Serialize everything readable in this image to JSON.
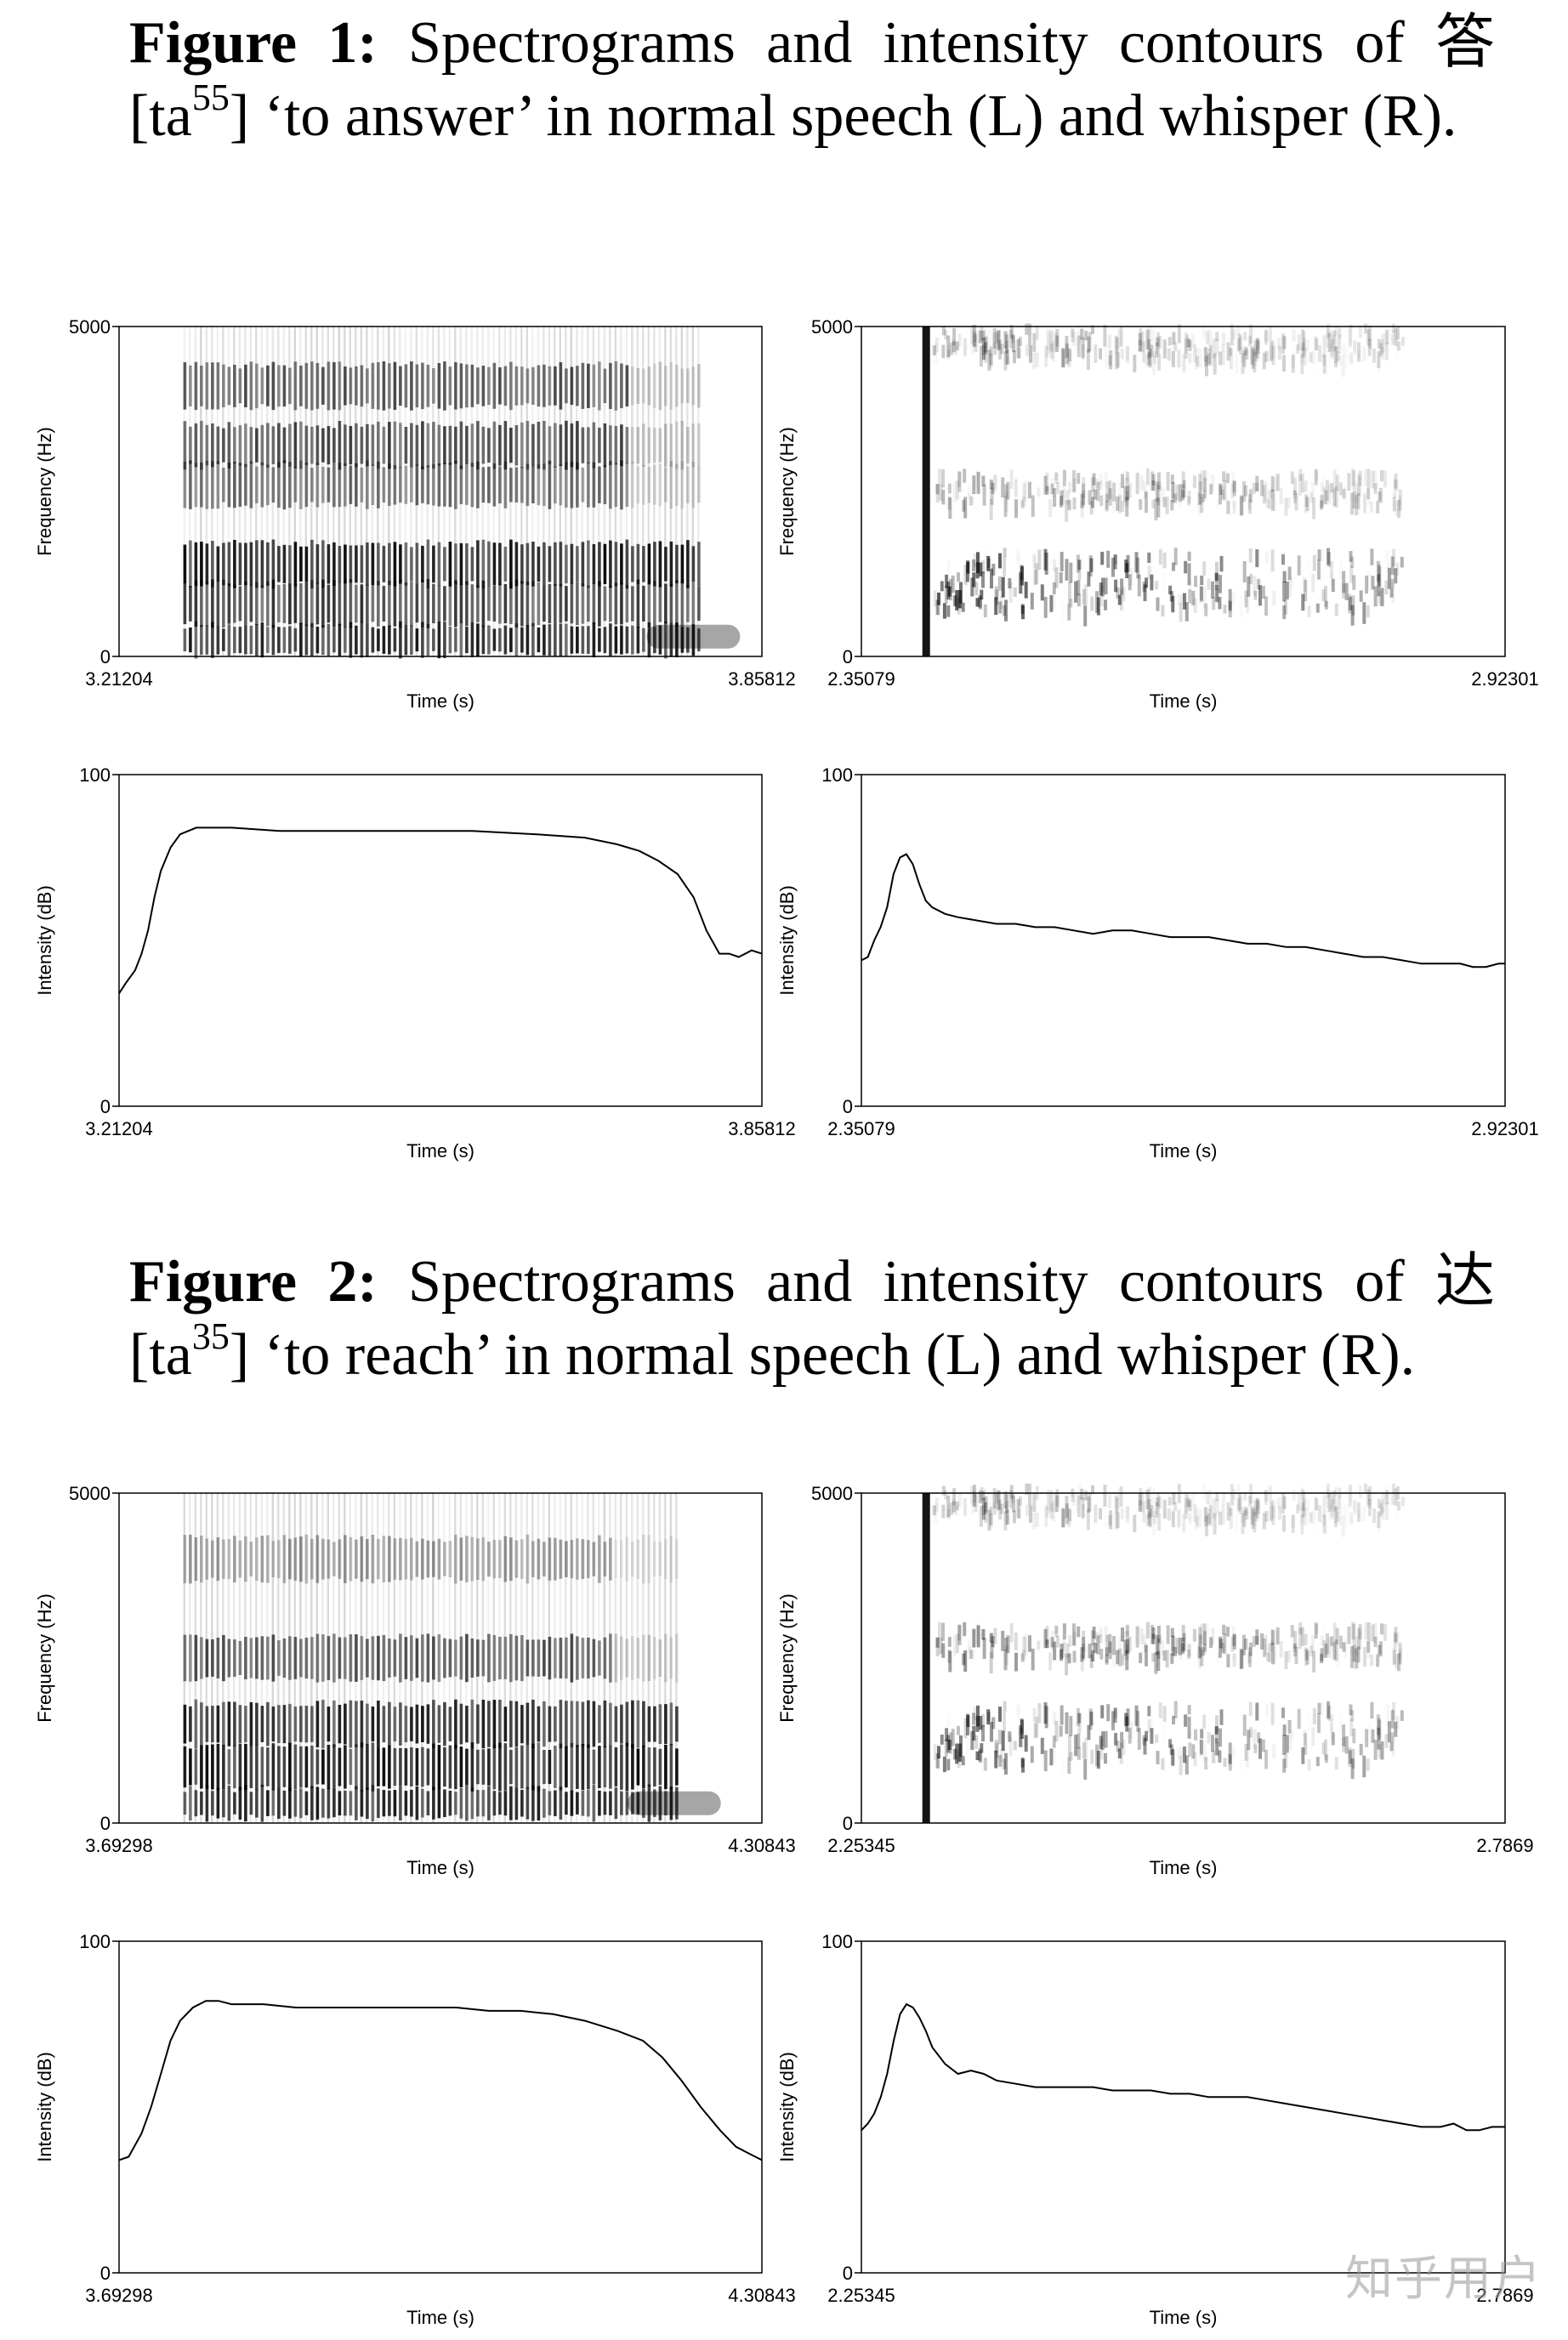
{
  "figure1": {
    "label": "Figure 1:",
    "text_a": " Spectrograms and intensity contours of 答 [ta",
    "sup": "55",
    "text_b": "] ‘to answer’ in normal speech (L) and whisper (R)."
  },
  "figure2": {
    "label": "Figure 2:",
    "text_a": " Spectrograms and intensity contours of 达 [ta",
    "sup": "35",
    "text_b": "] ‘to reach’ in normal speech (L) and whisper (R)."
  },
  "watermark": "知乎用户",
  "chart_data": [
    {
      "id": "fig1-left-spectrogram",
      "type": "heatmap",
      "xlabel": "Time (s)",
      "ylabel": "Frequency (Hz)",
      "xlim": [
        3.21204,
        3.85812
      ],
      "ylim": [
        0,
        5000
      ],
      "x_tick_labels": [
        "3.21204",
        "3.85812"
      ],
      "y_tick_labels": [
        "0",
        "5000"
      ],
      "mode": "voiced",
      "onset": 0.1,
      "offset": 0.9,
      "bands": [
        [
          250,
          0.9
        ],
        [
          800,
          0.8
        ],
        [
          1400,
          0.95
        ],
        [
          2600,
          0.6
        ],
        [
          3200,
          0.75
        ],
        [
          4100,
          0.7
        ]
      ]
    },
    {
      "id": "fig1-right-spectrogram",
      "type": "heatmap",
      "xlabel": "Time (s)",
      "ylabel": "Frequency (Hz)",
      "xlim": [
        2.35079,
        2.92301
      ],
      "ylim": [
        0,
        5000
      ],
      "x_tick_labels": [
        "2.35079",
        "2.92301"
      ],
      "y_tick_labels": [
        "0",
        "5000"
      ],
      "mode": "whisper",
      "onset": 0.1,
      "offset": 0.84,
      "bands": [
        [
          1200,
          0.85
        ],
        [
          2600,
          0.4
        ],
        [
          4800,
          0.35
        ]
      ]
    },
    {
      "id": "fig1-left-intensity",
      "type": "line",
      "xlabel": "Time (s)",
      "ylabel": "Intensity (dB)",
      "xlim": [
        3.21204,
        3.85812
      ],
      "ylim": [
        0,
        100
      ],
      "x_tick_labels": [
        "3.21204",
        "3.85812"
      ],
      "y_tick_labels": [
        "0",
        "100"
      ],
      "x": [
        3.21204,
        3.2185,
        3.2282,
        3.2347,
        3.2412,
        3.2476,
        3.2541,
        3.2638,
        3.2734,
        3.2896,
        3.3251,
        3.3735,
        3.438,
        3.5026,
        3.5672,
        3.6316,
        3.68,
        3.7122,
        3.7348,
        3.7541,
        3.7734,
        3.7895,
        3.8024,
        3.8154,
        3.8252,
        3.8349,
        3.8478,
        3.85812
      ],
      "y": [
        34,
        37,
        41,
        46,
        53,
        63,
        71,
        78,
        82,
        84,
        84,
        83,
        83,
        83,
        83,
        82,
        81,
        79,
        77,
        74,
        70,
        63,
        53,
        46,
        46,
        45,
        47,
        46
      ]
    },
    {
      "id": "fig1-right-intensity",
      "type": "line",
      "xlabel": "Time (s)",
      "ylabel": "Intensity (dB)",
      "xlim": [
        2.35079,
        2.92301
      ],
      "ylim": [
        0,
        100
      ],
      "x_tick_labels": [
        "2.35079",
        "2.92301"
      ],
      "y_tick_labels": [
        "0",
        "100"
      ],
      "x": [
        2.35079,
        2.3565,
        2.3622,
        2.3679,
        2.3737,
        2.3794,
        2.3851,
        2.3908,
        2.3965,
        2.4023,
        2.408,
        2.4137,
        2.4252,
        2.4366,
        2.4538,
        2.471,
        2.4881,
        2.5053,
        2.5225,
        2.5396,
        2.5568,
        2.574,
        2.5911,
        2.6083,
        2.6255,
        2.6426,
        2.6598,
        2.677,
        2.6941,
        2.7113,
        2.7285,
        2.7456,
        2.7628,
        2.78,
        2.7971,
        2.8143,
        2.8315,
        2.8486,
        2.8658,
        2.883,
        2.8944,
        2.9059,
        2.9173,
        2.92301
      ],
      "y": [
        44,
        45,
        50,
        54,
        60,
        70,
        75,
        76,
        73,
        67,
        62,
        60,
        58,
        57,
        56,
        55,
        55,
        54,
        54,
        53,
        52,
        53,
        53,
        52,
        51,
        51,
        51,
        50,
        49,
        49,
        48,
        48,
        47,
        46,
        45,
        45,
        44,
        43,
        43,
        43,
        42,
        42,
        43,
        43
      ]
    },
    {
      "id": "fig2-left-spectrogram",
      "type": "heatmap",
      "xlabel": "Time (s)",
      "ylabel": "Frequency (Hz)",
      "xlim": [
        3.69298,
        4.30843
      ],
      "ylim": [
        0,
        5000
      ],
      "x_tick_labels": [
        "3.69298",
        "4.30843"
      ],
      "y_tick_labels": [
        "0",
        "5000"
      ],
      "mode": "voiced",
      "onset": 0.1,
      "offset": 0.87,
      "bands": [
        [
          300,
          0.9
        ],
        [
          850,
          0.95
        ],
        [
          1500,
          0.9
        ],
        [
          2500,
          0.7
        ],
        [
          4000,
          0.4
        ]
      ]
    },
    {
      "id": "fig2-right-spectrogram",
      "type": "heatmap",
      "xlabel": "Time (s)",
      "ylabel": "Frequency (Hz)",
      "xlim": [
        2.25345,
        2.7869
      ],
      "ylim": [
        0,
        5000
      ],
      "x_tick_labels": [
        "2.25345",
        "2.7869"
      ],
      "y_tick_labels": [
        "0",
        "5000"
      ],
      "mode": "whisper",
      "onset": 0.1,
      "offset": 0.84,
      "bands": [
        [
          1400,
          0.75
        ],
        [
          2800,
          0.55
        ],
        [
          4900,
          0.3
        ]
      ]
    },
    {
      "id": "fig2-left-intensity",
      "type": "line",
      "xlabel": "Time (s)",
      "ylabel": "Intensity (dB)",
      "xlim": [
        3.69298,
        4.30843
      ],
      "ylim": [
        0,
        100
      ],
      "x": [
        3.69298,
        3.7022,
        3.7145,
        3.7237,
        3.733,
        3.7422,
        3.7514,
        3.7637,
        3.776,
        3.7883,
        3.8006,
        3.8314,
        3.8622,
        3.8929,
        3.9237,
        3.9545,
        3.9853,
        4.016,
        4.0468,
        4.0776,
        4.1084,
        4.1391,
        4.1699,
        4.1945,
        4.213,
        4.2314,
        4.2499,
        4.2684,
        4.2837,
        4.296,
        4.30843
      ],
      "y": [
        34,
        35,
        42,
        50,
        60,
        70,
        76,
        80,
        82,
        82,
        81,
        81,
        80,
        80,
        80,
        80,
        80,
        80,
        79,
        79,
        78,
        76,
        73,
        70,
        65,
        58,
        50,
        43,
        38,
        36,
        34
      ],
      "x_tick_labels": [
        "3.69298",
        "4.30843"
      ],
      "y_tick_labels": [
        "0",
        "100"
      ]
    },
    {
      "id": "fig2-right-intensity",
      "type": "line",
      "xlabel": "Time (s)",
      "ylabel": "Intensity (dB)",
      "xlim": [
        2.25345,
        2.7869
      ],
      "ylim": [
        0,
        100
      ],
      "x_tick_labels": [
        "2.25345",
        "2.7869"
      ],
      "y_tick_labels": [
        "0",
        "100"
      ],
      "x": [
        2.25345,
        2.2588,
        2.2641,
        2.2695,
        2.2748,
        2.2802,
        2.2855,
        2.2908,
        2.2962,
        2.3015,
        2.3068,
        2.3122,
        2.3228,
        2.3335,
        2.3442,
        2.3548,
        2.3655,
        2.3815,
        2.3975,
        2.4135,
        2.4295,
        2.4455,
        2.4615,
        2.4775,
        2.4935,
        2.5095,
        2.5255,
        2.5415,
        2.5575,
        2.5735,
        2.5895,
        2.6055,
        2.6215,
        2.6375,
        2.6535,
        2.6695,
        2.6855,
        2.7015,
        2.7175,
        2.7335,
        2.7442,
        2.7549,
        2.7655,
        2.7762,
        2.7869
      ],
      "y": [
        43,
        45,
        48,
        53,
        60,
        70,
        78,
        81,
        80,
        77,
        73,
        68,
        63,
        60,
        61,
        60,
        58,
        57,
        56,
        56,
        56,
        56,
        55,
        55,
        55,
        54,
        54,
        53,
        53,
        53,
        52,
        51,
        50,
        49,
        48,
        47,
        46,
        45,
        44,
        44,
        45,
        43,
        43,
        44,
        44
      ]
    }
  ]
}
